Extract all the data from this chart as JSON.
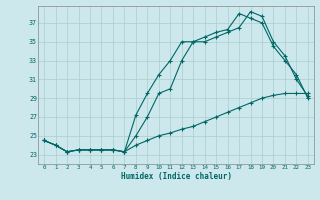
{
  "xlabel": "Humidex (Indice chaleur)",
  "background_color": "#cce8ec",
  "grid_color": "#aacccc",
  "line_color": "#006666",
  "xlim": [
    -0.5,
    23.5
  ],
  "ylim": [
    22.0,
    38.8
  ],
  "xticks": [
    0,
    1,
    2,
    3,
    4,
    5,
    6,
    7,
    8,
    9,
    10,
    11,
    12,
    13,
    14,
    15,
    16,
    17,
    18,
    19,
    20,
    21,
    22,
    23
  ],
  "yticks": [
    23,
    25,
    27,
    29,
    31,
    33,
    35,
    37
  ],
  "line1_x": [
    0,
    1,
    2,
    3,
    4,
    5,
    6,
    7,
    8,
    9,
    10,
    11,
    12,
    13,
    14,
    15,
    16,
    17,
    18,
    19,
    20,
    21,
    22,
    23
  ],
  "line1_y": [
    24.5,
    24.0,
    23.3,
    23.5,
    23.5,
    23.5,
    23.5,
    23.3,
    27.2,
    29.5,
    31.5,
    33.0,
    35.0,
    35.0,
    35.5,
    36.0,
    36.3,
    38.0,
    37.5,
    37.0,
    34.5,
    33.0,
    31.5,
    29.0
  ],
  "line2_x": [
    0,
    1,
    2,
    3,
    4,
    5,
    6,
    7,
    8,
    9,
    10,
    11,
    12,
    13,
    14,
    15,
    16,
    17,
    18,
    19,
    20,
    21,
    22,
    23
  ],
  "line2_y": [
    24.5,
    24.0,
    23.3,
    23.5,
    23.5,
    23.5,
    23.5,
    23.3,
    25.0,
    27.0,
    29.5,
    30.0,
    33.0,
    35.0,
    35.0,
    35.5,
    36.0,
    36.5,
    38.2,
    37.7,
    35.0,
    33.5,
    31.0,
    29.2
  ],
  "line3_x": [
    0,
    1,
    2,
    3,
    4,
    5,
    6,
    7,
    8,
    9,
    10,
    11,
    12,
    13,
    14,
    15,
    16,
    17,
    18,
    19,
    20,
    21,
    22,
    23
  ],
  "line3_y": [
    24.5,
    24.0,
    23.3,
    23.5,
    23.5,
    23.5,
    23.5,
    23.3,
    24.0,
    24.5,
    25.0,
    25.3,
    25.7,
    26.0,
    26.5,
    27.0,
    27.5,
    28.0,
    28.5,
    29.0,
    29.3,
    29.5,
    29.5,
    29.5
  ]
}
